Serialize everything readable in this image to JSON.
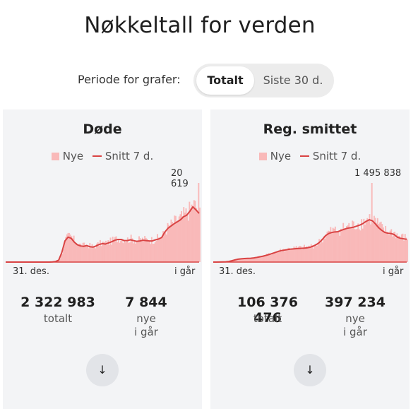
{
  "page": {
    "title": "Nøkkeltall for verden",
    "period_label": "Periode for grafer:",
    "period_options": [
      "Totalt",
      "Siste 30 d."
    ],
    "period_selected": "Totalt"
  },
  "colors": {
    "bar": "#f9b9b9",
    "line": "#d94343",
    "card_bg": "#f3f4f6"
  },
  "legend": {
    "new_label": "Nye",
    "avg_label": "Snitt 7 d."
  },
  "cards": [
    {
      "title": "Døde",
      "peak_label": "20 619",
      "x_start_label": "31. des.",
      "x_end_label": "i går",
      "total_value": "2 322 983",
      "total_label": "totalt",
      "new_value": "7 844",
      "new_label_line1": "nye",
      "new_label_line2": "i går",
      "expand_icon": "arrow-down-icon"
    },
    {
      "title": "Reg. smittet",
      "peak_label": "1 495 838",
      "x_start_label": "31. des.",
      "x_end_label": "i går",
      "total_value": "106 376 476",
      "total_label": "totalt",
      "new_value": "397 234",
      "new_label_line1": "nye",
      "new_label_line2": "i går",
      "expand_icon": "arrow-down-icon"
    }
  ],
  "chart_data": [
    {
      "type": "area",
      "title": "Døde",
      "x_start": "31. des.",
      "x_end": "i går",
      "ylim": [
        0,
        20619
      ],
      "series": [
        {
          "name": "Nye",
          "kind": "bar"
        },
        {
          "name": "Snitt 7 d.",
          "kind": "line"
        }
      ],
      "avg_profile": [
        0,
        0,
        0,
        0,
        0,
        0,
        0,
        0,
        0,
        0,
        0,
        0,
        0,
        0,
        0,
        50,
        150,
        500,
        2500,
        5500,
        6500,
        6200,
        5200,
        4500,
        4200,
        4100,
        4300,
        4000,
        3900,
        4200,
        4600,
        4800,
        4700,
        5000,
        5300,
        5700,
        5900,
        5900,
        5600,
        5600,
        5800,
        5600,
        5400,
        5500,
        5700,
        5600,
        5500,
        5500,
        5800,
        6000,
        6400,
        7800,
        8800,
        9400,
        10000,
        10500,
        11000,
        11800,
        12200,
        13200,
        14400,
        13600,
        12700
      ],
      "peak": 20619
    },
    {
      "type": "area",
      "title": "Reg. smittet",
      "x_start": "31. des.",
      "x_end": "i går",
      "ylim": [
        0,
        1495838
      ],
      "series": [
        {
          "name": "Nye",
          "kind": "bar"
        },
        {
          "name": "Snitt 7 d.",
          "kind": "line"
        }
      ],
      "avg_profile": [
        0,
        0,
        1500,
        3000,
        5500,
        12000,
        25000,
        42000,
        55000,
        62000,
        66000,
        70000,
        72000,
        78000,
        88000,
        100000,
        112000,
        128000,
        145000,
        165000,
        185000,
        205000,
        218000,
        228000,
        238000,
        245000,
        250000,
        255000,
        258000,
        262000,
        268000,
        280000,
        300000,
        330000,
        370000,
        430000,
        500000,
        540000,
        560000,
        570000,
        575000,
        600000,
        620000,
        640000,
        650000,
        660000,
        680000,
        700000,
        730000,
        770000,
        800000,
        780000,
        720000,
        650000,
        600000,
        560000,
        545000,
        540000,
        520000,
        470000,
        450000,
        440000,
        430000
      ],
      "peak": 1495838
    }
  ]
}
